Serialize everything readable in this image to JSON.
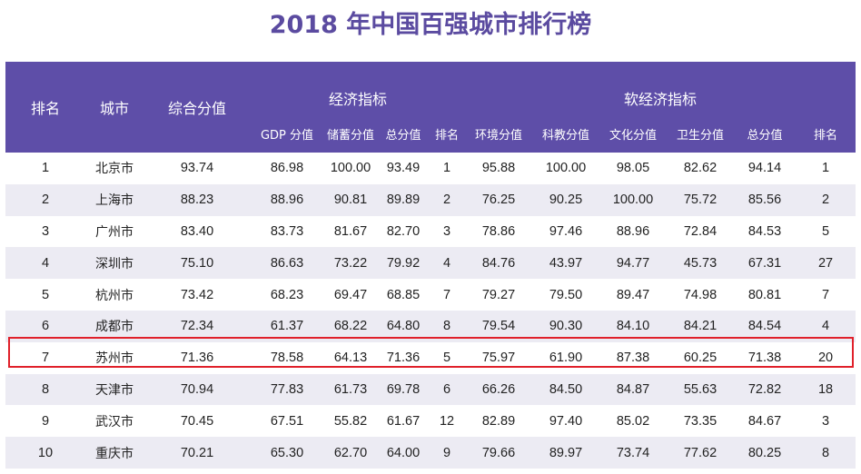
{
  "title": "2018 年中国百强城市排行榜",
  "header": {
    "rank": "排名",
    "city": "城市",
    "composite": "综合分值",
    "economic_group": "经济指标",
    "soft_group": "软经济指标",
    "economic_cols": [
      "GDP 分值",
      "储蓄分值",
      "总分值",
      "排名"
    ],
    "soft_cols": [
      "环境分值",
      "科教分值",
      "文化分值",
      "卫生分值",
      "总分值",
      "排名"
    ]
  },
  "rows": [
    {
      "rank": "1",
      "city": "北京市",
      "composite": "93.74",
      "gdp": "86.98",
      "savings": "100.00",
      "econ_total": "93.49",
      "econ_rank": "1",
      "env": "95.88",
      "edu": "100.00",
      "culture": "98.05",
      "health": "82.62",
      "soft_total": "94.14",
      "soft_rank": "1"
    },
    {
      "rank": "2",
      "city": "上海市",
      "composite": "88.23",
      "gdp": "88.96",
      "savings": "90.81",
      "econ_total": "89.89",
      "econ_rank": "2",
      "env": "76.25",
      "edu": "90.25",
      "culture": "100.00",
      "health": "75.72",
      "soft_total": "85.56",
      "soft_rank": "2"
    },
    {
      "rank": "3",
      "city": "广州市",
      "composite": "83.40",
      "gdp": "83.73",
      "savings": "81.67",
      "econ_total": "82.70",
      "econ_rank": "3",
      "env": "78.86",
      "edu": "97.46",
      "culture": "88.96",
      "health": "72.84",
      "soft_total": "84.53",
      "soft_rank": "5"
    },
    {
      "rank": "4",
      "city": "深圳市",
      "composite": "75.10",
      "gdp": "86.63",
      "savings": "73.22",
      "econ_total": "79.92",
      "econ_rank": "4",
      "env": "84.76",
      "edu": "43.97",
      "culture": "94.77",
      "health": "45.73",
      "soft_total": "67.31",
      "soft_rank": "27"
    },
    {
      "rank": "5",
      "city": "杭州市",
      "composite": "73.42",
      "gdp": "68.23",
      "savings": "69.47",
      "econ_total": "68.85",
      "econ_rank": "7",
      "env": "79.27",
      "edu": "79.50",
      "culture": "89.47",
      "health": "74.98",
      "soft_total": "80.81",
      "soft_rank": "7"
    },
    {
      "rank": "6",
      "city": "成都市",
      "composite": "72.34",
      "gdp": "61.37",
      "savings": "68.22",
      "econ_total": "64.80",
      "econ_rank": "8",
      "env": "79.54",
      "edu": "90.30",
      "culture": "84.10",
      "health": "84.21",
      "soft_total": "84.54",
      "soft_rank": "4"
    },
    {
      "rank": "7",
      "city": "苏州市",
      "composite": "71.36",
      "gdp": "78.58",
      "savings": "64.13",
      "econ_total": "71.36",
      "econ_rank": "5",
      "env": "75.97",
      "edu": "61.90",
      "culture": "87.38",
      "health": "60.25",
      "soft_total": "71.38",
      "soft_rank": "20"
    },
    {
      "rank": "8",
      "city": "天津市",
      "composite": "70.94",
      "gdp": "77.83",
      "savings": "61.73",
      "econ_total": "69.78",
      "econ_rank": "6",
      "env": "66.26",
      "edu": "84.50",
      "culture": "84.87",
      "health": "55.63",
      "soft_total": "72.82",
      "soft_rank": "18"
    },
    {
      "rank": "9",
      "city": "武汉市",
      "composite": "70.45",
      "gdp": "67.51",
      "savings": "55.82",
      "econ_total": "61.67",
      "econ_rank": "12",
      "env": "82.89",
      "edu": "97.40",
      "culture": "85.02",
      "health": "73.35",
      "soft_total": "84.67",
      "soft_rank": "3"
    },
    {
      "rank": "10",
      "city": "重庆市",
      "composite": "70.21",
      "gdp": "65.30",
      "savings": "62.70",
      "econ_total": "64.00",
      "econ_rank": "9",
      "env": "79.66",
      "edu": "89.97",
      "culture": "73.74",
      "health": "77.62",
      "soft_total": "80.25",
      "soft_rank": "8"
    }
  ],
  "highlight_color": "#e0202a",
  "header_color": "#5e4ea8"
}
